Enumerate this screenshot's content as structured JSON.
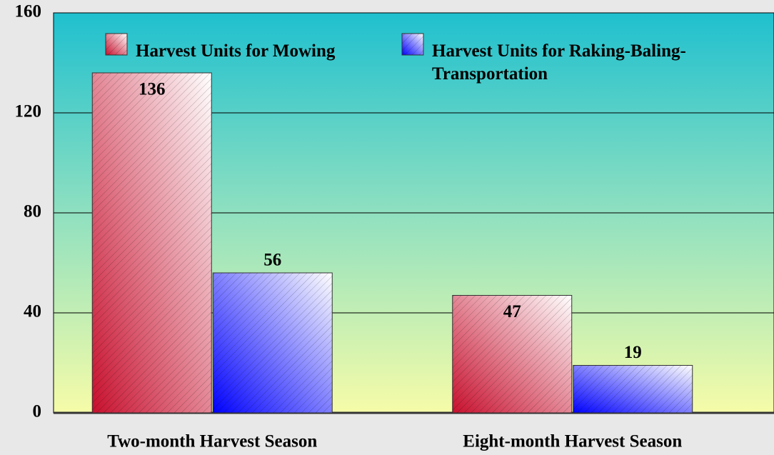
{
  "chart_data": {
    "type": "bar",
    "categories": [
      "Two-month Harvest Season",
      "Eight-month Harvest Season"
    ],
    "series": [
      {
        "name": "Harvest Units for Mowing",
        "color": "#c8102e",
        "values": [
          136,
          47
        ]
      },
      {
        "name": "Harvest Units for Raking-Baling-Transportation",
        "color": "#0000ff",
        "values": [
          56,
          19
        ]
      }
    ],
    "ylim": [
      0,
      160
    ],
    "yticks": [
      0,
      40,
      80,
      120,
      160
    ],
    "grid": true
  }
}
